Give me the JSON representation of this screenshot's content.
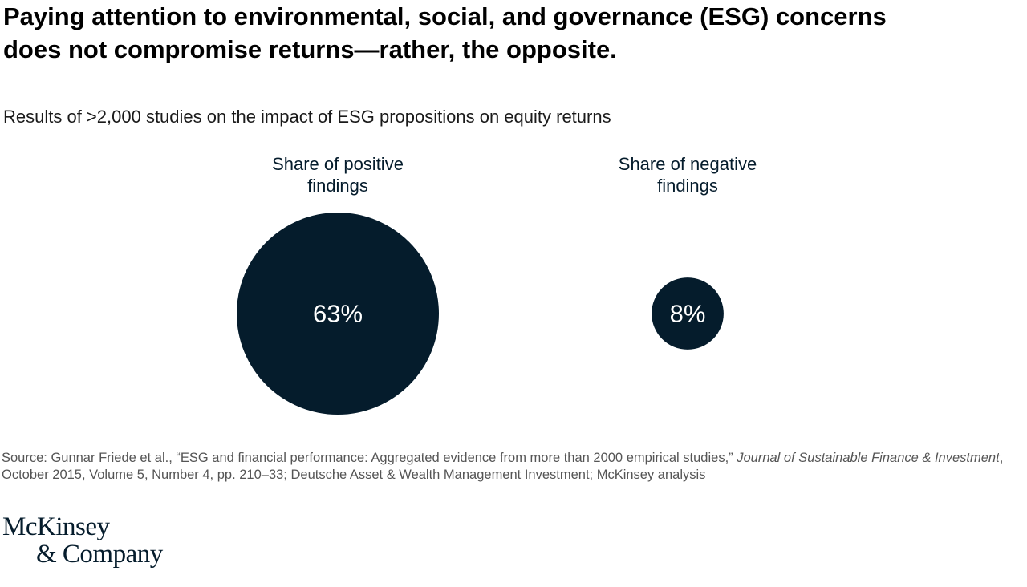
{
  "header": {
    "title_line1": "Paying attention to environmental, social, and governance (ESG) concerns",
    "title_line2": "does not compromise returns—rather, the opposite.",
    "subtitle": "Results of >2,000 studies on the impact of ESG propositions on equity returns"
  },
  "chart_data": {
    "type": "bubble",
    "title": "Paying attention to environmental, social, and governance (ESG) concerns does not compromise returns—rather, the opposite.",
    "subtitle": "Results of >2,000 studies on the impact of ESG propositions on equity returns",
    "categories": [
      {
        "label_line1": "Share of positive",
        "label_line2": "findings",
        "value": 63,
        "value_label": "63%"
      },
      {
        "label_line1": "Share of negative",
        "label_line2": "findings",
        "value": 8,
        "value_label": "8%"
      }
    ],
    "unit": "%",
    "colors": {
      "bubble": "#051c2c",
      "value_text": "#ffffff"
    }
  },
  "footer": {
    "source_prefix": "Source: Gunnar Friede et al., “ESG and financial performance: Aggregated evidence from more than 2000 empirical studies,” ",
    "source_journal": "Journal of Sustainable Finance & Investment",
    "source_suffix": ", October 2015, Volume 5, Number 4, pp. 210–33; Deutsche Asset & Wealth Management Investment; McKinsey analysis",
    "logo_line1": "McKinsey",
    "logo_line2": "& Company"
  }
}
